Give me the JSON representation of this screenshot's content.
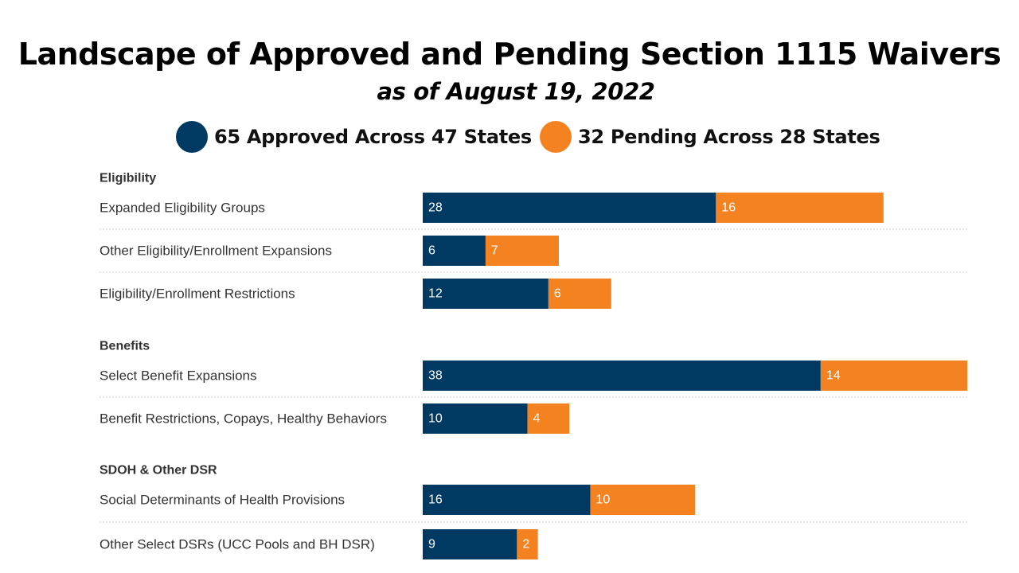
{
  "title": "Landscape of Approved and Pending Section 1115 Waivers",
  "subtitle": "as of August 19, 2022",
  "legend": {
    "approved": {
      "label": "65 Approved Across 47 States",
      "color": "#003a63"
    },
    "pending": {
      "label": "32 Pending Across 28 States",
      "color": "#f58220"
    }
  },
  "chart_data": {
    "type": "bar",
    "orientation": "horizontal",
    "stacked": true,
    "title": "Landscape of Approved and Pending Section 1115 Waivers",
    "subtitle": "as of August 19, 2022",
    "xlim": [
      0,
      52
    ],
    "grid": false,
    "legend_position": "top",
    "series": [
      {
        "name": "Approved",
        "color": "#003a63"
      },
      {
        "name": "Pending",
        "color": "#f58220"
      }
    ],
    "groups": [
      {
        "name": "Eligibility",
        "rows": [
          {
            "label": "Expanded Eligibility Groups",
            "approved": 28,
            "pending": 16
          },
          {
            "label": "Other Eligibility/Enrollment Expansions",
            "approved": 6,
            "pending": 7
          },
          {
            "label": "Eligibility/Enrollment Restrictions",
            "approved": 12,
            "pending": 6
          }
        ]
      },
      {
        "name": "Benefits",
        "rows": [
          {
            "label": "Select Benefit Expansions",
            "approved": 38,
            "pending": 14
          },
          {
            "label": "Benefit Restrictions, Copays, Healthy Behaviors",
            "approved": 10,
            "pending": 4
          }
        ]
      },
      {
        "name": "SDOH & Other DSR",
        "rows": [
          {
            "label": "Social Determinants of Health Provisions",
            "approved": 16,
            "pending": 10
          },
          {
            "label": "Other Select DSRs (UCC Pools and BH DSR)",
            "approved": 9,
            "pending": 2
          }
        ]
      }
    ]
  }
}
